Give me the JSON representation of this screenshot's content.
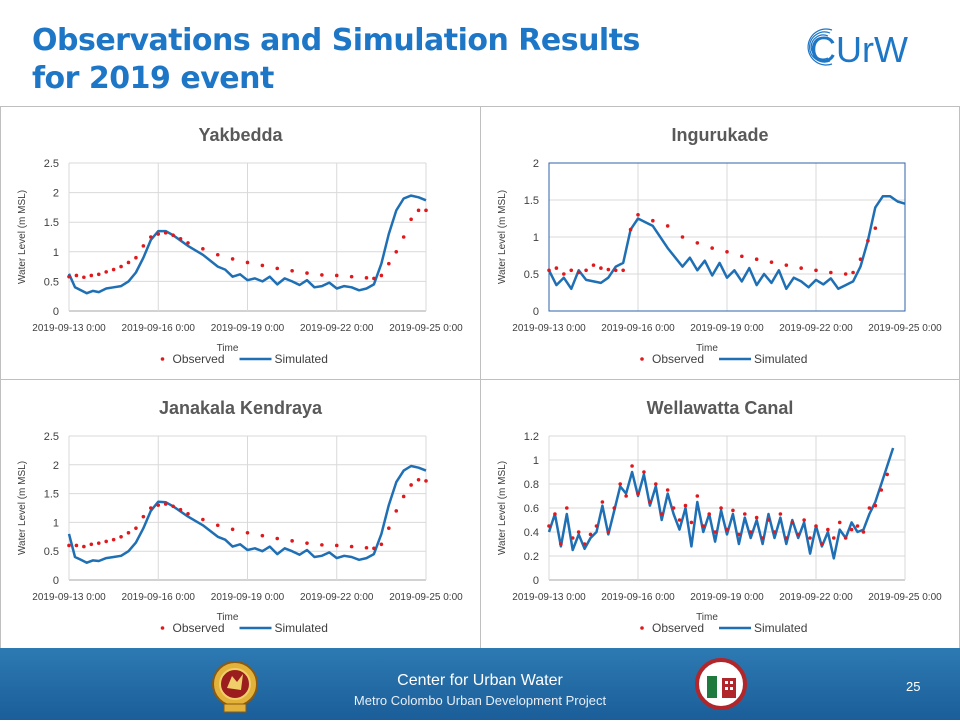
{
  "slide": {
    "title_line1": "Observations and Simulation Results",
    "title_line2": "for 2019 event",
    "brand_logo_text": "CUrW",
    "footer_org": "Center for Urban Water",
    "footer_project": "Metro Colombo Urban Development Project",
    "page_number": "25",
    "colors": {
      "title": "#1d76c6",
      "observed": "#e0191c",
      "simulated": "#1f6fb5",
      "footer": "#1f67a5"
    }
  },
  "chart_data": [
    {
      "type": "line",
      "title": "Yakbedda",
      "xlabel": "Time",
      "ylabel": "Water Level  (m MSL)",
      "xticks": [
        "2019-09-13 0:00",
        "2019-09-16 0:00",
        "2019-09-19 0:00",
        "2019-09-22 0:00",
        "2019-09-25 0:00"
      ],
      "xlim": [
        0,
        12
      ],
      "ylim": [
        0,
        2.5
      ],
      "yticks": [
        "0",
        "0.5",
        "1",
        "1.5",
        "2",
        "2.5"
      ],
      "yvals": [
        0,
        0.5,
        1,
        1.5,
        2,
        2.5
      ],
      "legend": "bottom",
      "series": [
        {
          "name": "Observed",
          "style": "dots",
          "x": [
            0.0,
            0.25,
            0.5,
            0.75,
            1.0,
            1.25,
            1.5,
            1.75,
            2.0,
            2.25,
            2.5,
            2.75,
            3.0,
            3.25,
            3.5,
            3.75,
            4.0,
            4.5,
            5.0,
            5.5,
            6.0,
            6.5,
            7.0,
            7.5,
            8.0,
            8.5,
            9.0,
            9.5,
            10.0,
            10.25,
            10.5,
            10.75,
            11.0,
            11.25,
            11.5,
            11.75,
            12.0
          ],
          "y": [
            0.58,
            0.6,
            0.57,
            0.6,
            0.62,
            0.66,
            0.7,
            0.75,
            0.82,
            0.9,
            1.1,
            1.25,
            1.3,
            1.32,
            1.28,
            1.22,
            1.15,
            1.05,
            0.95,
            0.88,
            0.82,
            0.77,
            0.72,
            0.68,
            0.64,
            0.61,
            0.6,
            0.58,
            0.56,
            0.55,
            0.6,
            0.8,
            1.0,
            1.25,
            1.55,
            1.7,
            1.7
          ]
        },
        {
          "name": "Simulated",
          "style": "line",
          "x": [
            0.0,
            0.2,
            0.4,
            0.6,
            0.8,
            1.0,
            1.25,
            1.5,
            1.75,
            2.0,
            2.25,
            2.5,
            2.75,
            3.0,
            3.25,
            3.5,
            4.0,
            4.5,
            5.0,
            5.25,
            5.5,
            5.75,
            6.0,
            6.25,
            6.5,
            6.75,
            7.0,
            7.25,
            7.5,
            7.75,
            8.0,
            8.25,
            8.5,
            8.75,
            9.0,
            9.25,
            9.5,
            9.75,
            10.0,
            10.25,
            10.5,
            10.75,
            11.0,
            11.25,
            11.5,
            11.75,
            12.0
          ],
          "y": [
            0.63,
            0.4,
            0.35,
            0.3,
            0.34,
            0.32,
            0.38,
            0.4,
            0.42,
            0.5,
            0.65,
            0.9,
            1.2,
            1.35,
            1.35,
            1.28,
            1.1,
            0.95,
            0.75,
            0.7,
            0.58,
            0.62,
            0.52,
            0.55,
            0.5,
            0.58,
            0.45,
            0.55,
            0.5,
            0.44,
            0.52,
            0.4,
            0.42,
            0.48,
            0.38,
            0.42,
            0.4,
            0.35,
            0.38,
            0.45,
            0.8,
            1.3,
            1.7,
            1.9,
            1.95,
            1.92,
            1.87
          ]
        }
      ]
    },
    {
      "type": "line",
      "title": "Ingurukade",
      "xlabel": "Time",
      "ylabel": "Water Level  (m MSL)",
      "xticks": [
        "2019-09-13 0:00",
        "2019-09-16 0:00",
        "2019-09-19 0:00",
        "2019-09-22 0:00",
        "2019-09-25 0:00"
      ],
      "xlim": [
        0,
        12
      ],
      "ylim": [
        0,
        2
      ],
      "yticks": [
        "0",
        "0.5",
        "1",
        "1.5",
        "2"
      ],
      "yvals": [
        0,
        0.5,
        1,
        1.5,
        2
      ],
      "legend": "bottom",
      "series": [
        {
          "name": "Observed",
          "style": "dots",
          "x": [
            0.0,
            0.25,
            0.5,
            0.75,
            1.0,
            1.25,
            1.5,
            1.75,
            2.0,
            2.25,
            2.5,
            2.75,
            3.0,
            3.5,
            4.0,
            4.5,
            5.0,
            5.5,
            6.0,
            6.5,
            7.0,
            7.5,
            8.0,
            8.5,
            9.0,
            9.5,
            10.0,
            10.25,
            10.5,
            10.75,
            11.0
          ],
          "y": [
            0.55,
            0.58,
            0.5,
            0.55,
            0.52,
            0.55,
            0.62,
            0.58,
            0.56,
            0.55,
            0.55,
            1.1,
            1.3,
            1.22,
            1.15,
            1.0,
            0.92,
            0.85,
            0.8,
            0.74,
            0.7,
            0.66,
            0.62,
            0.58,
            0.55,
            0.52,
            0.5,
            0.52,
            0.7,
            0.95,
            1.12
          ]
        },
        {
          "name": "Simulated",
          "style": "line",
          "x": [
            0.0,
            0.25,
            0.5,
            0.75,
            1.0,
            1.25,
            1.5,
            1.75,
            2.0,
            2.25,
            2.5,
            2.75,
            3.0,
            3.25,
            3.5,
            4.0,
            4.5,
            4.75,
            5.0,
            5.25,
            5.5,
            5.75,
            6.0,
            6.25,
            6.5,
            6.75,
            7.0,
            7.25,
            7.5,
            7.75,
            8.0,
            8.25,
            8.5,
            8.75,
            9.0,
            9.25,
            9.5,
            9.75,
            10.0,
            10.25,
            10.5,
            10.75,
            11.0,
            11.25,
            11.5,
            11.75,
            12.0
          ],
          "y": [
            0.55,
            0.35,
            0.45,
            0.3,
            0.55,
            0.42,
            0.4,
            0.38,
            0.45,
            0.6,
            0.65,
            1.1,
            1.25,
            1.2,
            1.15,
            0.85,
            0.6,
            0.72,
            0.55,
            0.68,
            0.48,
            0.65,
            0.45,
            0.55,
            0.4,
            0.58,
            0.35,
            0.5,
            0.38,
            0.55,
            0.3,
            0.45,
            0.4,
            0.32,
            0.42,
            0.36,
            0.44,
            0.3,
            0.35,
            0.4,
            0.6,
            0.95,
            1.4,
            1.55,
            1.55,
            1.48,
            1.45
          ]
        }
      ]
    },
    {
      "type": "line",
      "title": "Janakala Kendraya",
      "xlabel": "Time",
      "ylabel": "Water Level  (m MSL)",
      "xticks": [
        "2019-09-13 0:00",
        "2019-09-16 0:00",
        "2019-09-19 0:00",
        "2019-09-22 0:00",
        "2019-09-25 0:00"
      ],
      "xlim": [
        0,
        12
      ],
      "ylim": [
        0,
        2.5
      ],
      "yticks": [
        "0",
        "0.5",
        "1",
        "1.5",
        "2",
        "2.5"
      ],
      "yvals": [
        0,
        0.5,
        1,
        1.5,
        2,
        2.5
      ],
      "legend": "bottom",
      "series": [
        {
          "name": "Observed",
          "style": "dots",
          "x": [
            0.0,
            0.25,
            0.5,
            0.75,
            1.0,
            1.25,
            1.5,
            1.75,
            2.0,
            2.25,
            2.5,
            2.75,
            3.0,
            3.25,
            3.5,
            3.75,
            4.0,
            4.5,
            5.0,
            5.5,
            6.0,
            6.5,
            7.0,
            7.5,
            8.0,
            8.5,
            9.0,
            9.5,
            10.0,
            10.25,
            10.5,
            10.75,
            11.0,
            11.25,
            11.5,
            11.75,
            12.0
          ],
          "y": [
            0.6,
            0.6,
            0.58,
            0.62,
            0.64,
            0.67,
            0.7,
            0.75,
            0.82,
            0.9,
            1.1,
            1.25,
            1.3,
            1.32,
            1.28,
            1.22,
            1.15,
            1.05,
            0.95,
            0.88,
            0.82,
            0.77,
            0.72,
            0.68,
            0.64,
            0.61,
            0.6,
            0.58,
            0.56,
            0.55,
            0.62,
            0.9,
            1.2,
            1.45,
            1.65,
            1.74,
            1.72
          ]
        },
        {
          "name": "Simulated",
          "style": "line",
          "x": [
            0.0,
            0.2,
            0.4,
            0.6,
            0.8,
            1.0,
            1.25,
            1.5,
            1.75,
            2.0,
            2.25,
            2.5,
            2.75,
            3.0,
            3.25,
            3.5,
            4.0,
            4.5,
            5.0,
            5.25,
            5.5,
            5.75,
            6.0,
            6.25,
            6.5,
            6.75,
            7.0,
            7.25,
            7.5,
            7.75,
            8.0,
            8.25,
            8.5,
            8.75,
            9.0,
            9.25,
            9.5,
            9.75,
            10.0,
            10.25,
            10.5,
            10.75,
            11.0,
            11.25,
            11.5,
            11.75,
            12.0
          ],
          "y": [
            0.8,
            0.4,
            0.35,
            0.3,
            0.34,
            0.33,
            0.38,
            0.4,
            0.42,
            0.5,
            0.65,
            0.9,
            1.2,
            1.36,
            1.35,
            1.28,
            1.1,
            0.95,
            0.75,
            0.7,
            0.58,
            0.62,
            0.52,
            0.55,
            0.5,
            0.58,
            0.45,
            0.55,
            0.5,
            0.44,
            0.52,
            0.4,
            0.42,
            0.48,
            0.38,
            0.42,
            0.4,
            0.35,
            0.38,
            0.45,
            0.8,
            1.3,
            1.7,
            1.9,
            1.98,
            1.95,
            1.9
          ]
        }
      ]
    },
    {
      "type": "line",
      "title": "Wellawatta Canal",
      "xlabel": "Time",
      "ylabel": "Water Level  (m MSL)",
      "xticks": [
        "2019-09-13 0:00",
        "2019-09-16 0:00",
        "2019-09-19 0:00",
        "2019-09-22 0:00",
        "2019-09-25 0:00"
      ],
      "xlim": [
        0,
        12
      ],
      "ylim": [
        0,
        1.2
      ],
      "yticks": [
        "0",
        "0.2",
        "0.4",
        "0.6",
        "0.8",
        "1",
        "1.2"
      ],
      "yvals": [
        0,
        0.2,
        0.4,
        0.6,
        0.8,
        1.0,
        1.2
      ],
      "legend": "bottom",
      "series": [
        {
          "name": "Observed",
          "style": "dots",
          "x": [
            0.0,
            0.2,
            0.4,
            0.6,
            0.8,
            1.0,
            1.2,
            1.4,
            1.6,
            1.8,
            2.0,
            2.2,
            2.4,
            2.6,
            2.8,
            3.0,
            3.2,
            3.4,
            3.6,
            3.8,
            4.0,
            4.2,
            4.4,
            4.6,
            4.8,
            5.0,
            5.2,
            5.4,
            5.6,
            5.8,
            6.0,
            6.2,
            6.4,
            6.6,
            6.8,
            7.0,
            7.2,
            7.4,
            7.6,
            7.8,
            8.0,
            8.2,
            8.4,
            8.6,
            8.8,
            9.0,
            9.2,
            9.4,
            9.6,
            9.8,
            10.0,
            10.2,
            10.4,
            10.6,
            10.8,
            11.0,
            11.2,
            11.4
          ],
          "y": [
            0.45,
            0.55,
            0.3,
            0.6,
            0.35,
            0.4,
            0.3,
            0.38,
            0.45,
            0.65,
            0.4,
            0.6,
            0.8,
            0.7,
            0.95,
            0.72,
            0.9,
            0.65,
            0.8,
            0.55,
            0.75,
            0.6,
            0.5,
            0.62,
            0.48,
            0.7,
            0.45,
            0.55,
            0.4,
            0.6,
            0.42,
            0.58,
            0.38,
            0.55,
            0.4,
            0.52,
            0.35,
            0.5,
            0.4,
            0.55,
            0.35,
            0.48,
            0.38,
            0.5,
            0.35,
            0.45,
            0.3,
            0.42,
            0.35,
            0.48,
            0.35,
            0.42,
            0.45,
            0.4,
            0.6,
            0.62,
            0.75,
            0.88
          ]
        },
        {
          "name": "Simulated",
          "style": "line",
          "x": [
            0.0,
            0.2,
            0.4,
            0.6,
            0.8,
            1.0,
            1.2,
            1.4,
            1.6,
            1.8,
            2.0,
            2.2,
            2.4,
            2.6,
            2.8,
            3.0,
            3.2,
            3.4,
            3.6,
            3.8,
            4.0,
            4.2,
            4.4,
            4.6,
            4.8,
            5.0,
            5.2,
            5.4,
            5.6,
            5.8,
            6.0,
            6.2,
            6.4,
            6.6,
            6.8,
            7.0,
            7.2,
            7.4,
            7.6,
            7.8,
            8.0,
            8.2,
            8.4,
            8.6,
            8.8,
            9.0,
            9.2,
            9.4,
            9.6,
            9.8,
            10.0,
            10.2,
            10.4,
            10.6,
            10.8,
            11.0,
            11.2,
            11.4,
            11.6
          ],
          "y": [
            0.4,
            0.55,
            0.28,
            0.55,
            0.25,
            0.38,
            0.26,
            0.35,
            0.4,
            0.62,
            0.38,
            0.58,
            0.78,
            0.72,
            0.9,
            0.7,
            0.88,
            0.62,
            0.78,
            0.5,
            0.72,
            0.55,
            0.42,
            0.6,
            0.28,
            0.65,
            0.4,
            0.55,
            0.32,
            0.58,
            0.38,
            0.55,
            0.3,
            0.52,
            0.35,
            0.5,
            0.3,
            0.55,
            0.35,
            0.52,
            0.3,
            0.5,
            0.35,
            0.48,
            0.22,
            0.45,
            0.28,
            0.4,
            0.18,
            0.42,
            0.35,
            0.48,
            0.4,
            0.42,
            0.55,
            0.65,
            0.8,
            0.95,
            1.1
          ]
        }
      ]
    }
  ]
}
